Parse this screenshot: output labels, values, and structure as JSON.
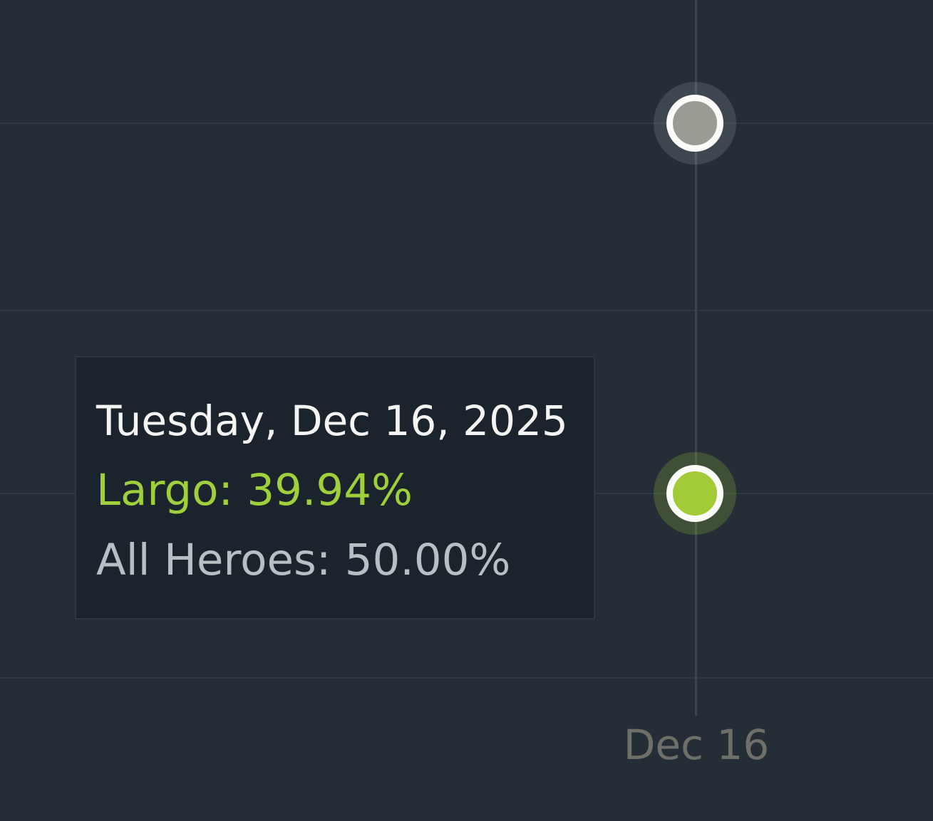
{
  "chart": {
    "background_color": "#252d37",
    "gridline_color": "#2f3944",
    "crosshair_color": "#3c4650",
    "x_axis_label": "Dec 16"
  },
  "tooltip": {
    "title": "Tuesday, Dec 16, 2025",
    "separator": ": ",
    "title_color": "#f4f4f2",
    "background_color": "#1b232c",
    "rows": [
      {
        "label": "Largo",
        "value": "39.94%",
        "color": "#a0cf3c"
      },
      {
        "label": "All Heroes",
        "value": "50.00%",
        "color": "#b9bec2"
      }
    ]
  },
  "chart_data": {
    "type": "line",
    "x": [
      "Dec 16"
    ],
    "series": [
      {
        "name": "Largo",
        "color": "#a3cb38",
        "values": [
          39.94
        ]
      },
      {
        "name": "All Heroes",
        "color": "#9b9b94",
        "values": [
          50.0
        ]
      }
    ],
    "hovered_point": {
      "date": "Tuesday, Dec 16, 2025",
      "largo_winrate_pct": 39.94,
      "all_heroes_winrate_pct": 50.0
    },
    "grid": true,
    "legend_position": "none",
    "marker_ring_color": "#fbfbf9"
  }
}
